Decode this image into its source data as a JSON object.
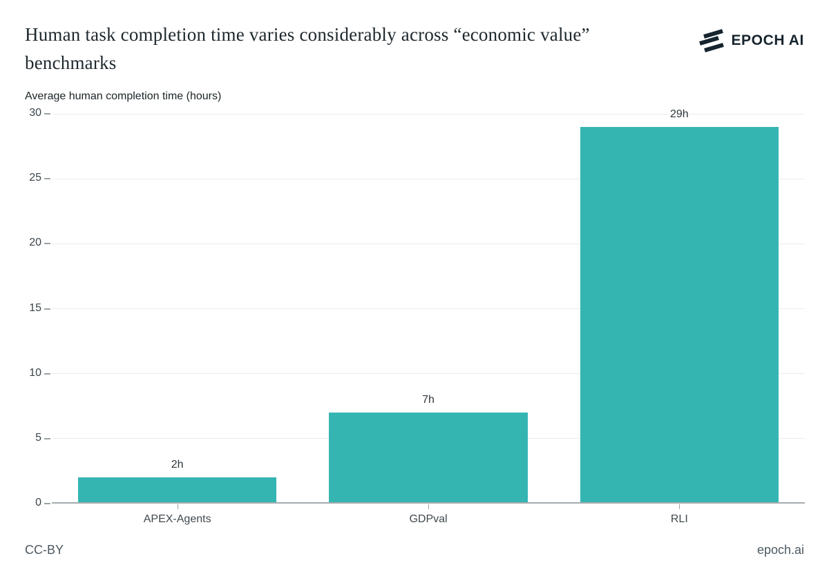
{
  "header": {
    "title": "Human task completion time varies considerably across “economic value” benchmarks",
    "logo_text": "EPOCH AI"
  },
  "chart_data": {
    "type": "bar",
    "title": "Average human completion time (hours)",
    "categories": [
      "APEX-Agents",
      "GDPval",
      "RLI"
    ],
    "values": [
      2,
      7,
      29
    ],
    "value_labels": [
      "2h",
      "7h",
      "29h"
    ],
    "ylim": [
      0,
      30
    ],
    "yticks": [
      0,
      5,
      10,
      15,
      20,
      25,
      30
    ],
    "grid": true,
    "legend": "none",
    "bar_color": "#35b5b2"
  },
  "footer": {
    "license": "CC-BY",
    "site": "epoch.ai"
  },
  "colors": {
    "bar": "#35b5b2",
    "title_text": "#1e282d",
    "logo": "#16242e",
    "gridline": "#e9eced",
    "axis_line": "#a5abae",
    "tick_text": "#3a4449",
    "footer_text": "#4d5961"
  }
}
